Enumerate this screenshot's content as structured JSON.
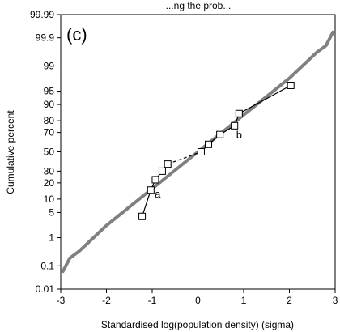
{
  "chart_data": {
    "type": "scatter",
    "title": "...ng the prob...",
    "panel_label": "(c)",
    "xlabel": "Standardised log(population density) (sigma)",
    "ylabel": "Cumulative percent",
    "xlim": [
      -3,
      3
    ],
    "x_ticks": [
      -3,
      -2,
      -1,
      0,
      1,
      2,
      3
    ],
    "y_ticks": [
      0.01,
      0.1,
      1,
      5,
      10,
      20,
      30,
      50,
      70,
      80,
      90,
      95,
      99,
      99.9,
      99.99
    ],
    "y_tick_labels": [
      "0.01",
      "0.1",
      "1",
      "5",
      "10",
      "20",
      "30",
      "50",
      "70",
      "80",
      "90",
      "95",
      "99",
      "99.9",
      "99.99"
    ],
    "y_scale": "normal probability",
    "grid": false,
    "series": [
      {
        "style": "gray thick line",
        "color": "#808080",
        "x": [
          -2.95,
          -2.8,
          -2.6,
          -2.0,
          -1.0,
          0.0,
          1.0,
          2.0,
          2.6,
          2.8,
          2.95
        ],
        "y": [
          0.06,
          0.2,
          0.35,
          2.3,
          15.9,
          50,
          84.1,
          97.7,
          99.65,
          99.8,
          99.94
        ]
      },
      {
        "style": "open squares, segment a (solid)",
        "color": "#000000",
        "x": [
          -1.22,
          -1.03,
          -0.93,
          -0.78,
          -0.66
        ],
        "y": [
          4,
          15,
          22.5,
          30,
          37
        ]
      },
      {
        "style": "open squares, dashed link",
        "color": "#000000",
        "dashed": true,
        "x": [
          -0.66,
          0.07
        ],
        "y": [
          37,
          50
        ]
      },
      {
        "style": "open squares, segment b (solid)",
        "color": "#000000",
        "x": [
          0.07,
          0.23,
          0.48,
          0.8,
          0.9,
          2.03
        ],
        "y": [
          50,
          58,
          68,
          76,
          85,
          96.4
        ]
      }
    ],
    "annotations": [
      {
        "text": "a",
        "x": -0.88,
        "y": 13
      },
      {
        "text": "b",
        "x": 0.9,
        "y": 68
      }
    ]
  }
}
